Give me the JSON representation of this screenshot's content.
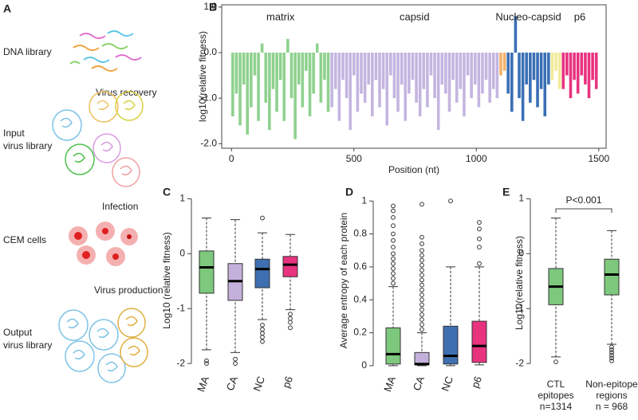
{
  "diagram": {
    "label": "A",
    "dna_library": "DNA library",
    "virus_recovery": "Virus recovery",
    "input_library": [
      "Input",
      "virus library"
    ],
    "infection": "Infection",
    "cem_cells": "CEM cells",
    "virus_production": "Virus production",
    "output_library": [
      "Output",
      "virus library"
    ]
  },
  "chart_data": [
    {
      "type": "bar",
      "label": "B",
      "xlabel": "Position (nt)",
      "ylabel": "log10(relative fitness)",
      "xlim": [
        -40,
        1530
      ],
      "xticks": [
        0,
        500,
        1000,
        1500
      ],
      "ylim": [
        -2.1,
        1.05
      ],
      "yticks": [
        {
          "value": -2,
          "label": "-2.0"
        },
        {
          "value": -1,
          "label": "-1.0"
        },
        {
          "value": 0,
          "label": "0.0"
        },
        {
          "value": 1,
          "label": "1.0"
        }
      ],
      "series": [
        {
          "name": "matrix",
          "color": "#8fd18f",
          "x": [
            5,
            20,
            35,
            50,
            65,
            80,
            95,
            110,
            125,
            140,
            155,
            170,
            185,
            200,
            215,
            230,
            245,
            260,
            275,
            290,
            305,
            320,
            335,
            350,
            365,
            380,
            395
          ],
          "values": [
            -1.4,
            -0.9,
            -1.6,
            -0.7,
            -1.8,
            -1.2,
            -0.5,
            -1.5,
            0.2,
            -1.1,
            -1.7,
            -0.8,
            -1.3,
            -0.6,
            -1.5,
            0.3,
            -1.0,
            -1.9,
            -0.7,
            -1.2,
            -0.4,
            -1.4,
            -0.9,
            0.2,
            -1.1,
            -0.6,
            -1.3
          ]
        },
        {
          "name": "capsid",
          "color": "#c4b5e0",
          "x": [
            410,
            425,
            440,
            455,
            470,
            485,
            500,
            515,
            530,
            545,
            560,
            575,
            590,
            605,
            620,
            635,
            650,
            665,
            680,
            695,
            710,
            725,
            740,
            755,
            770,
            785,
            800,
            815,
            830,
            845,
            860,
            875,
            890,
            905,
            920,
            935,
            950,
            965,
            980,
            995,
            1010,
            1025,
            1040,
            1055,
            1070,
            1085
          ],
          "values": [
            -1.2,
            -0.8,
            -1.5,
            -0.6,
            -1.0,
            -1.7,
            -0.5,
            -1.3,
            -0.9,
            -1.1,
            -0.7,
            -1.4,
            -0.6,
            -1.2,
            -0.8,
            -1.6,
            -0.5,
            -1.0,
            -1.3,
            -0.7,
            -1.5,
            -0.9,
            -0.6,
            -1.1,
            -1.4,
            -0.8,
            -1.2,
            -0.5,
            -1.0,
            -1.7,
            -0.7,
            -0.9,
            -1.3,
            -0.6,
            -1.1,
            -0.8,
            -1.4,
            -0.5,
            -1.0,
            -0.7,
            -1.2,
            -0.9,
            -0.6,
            -1.1,
            -0.8,
            -1.0
          ]
        },
        {
          "color": "#f5b26b",
          "x": [
            1100,
            1115
          ],
          "values": [
            -0.5,
            -0.4
          ]
        },
        {
          "name": "Nucleo-capsid",
          "color": "#3a6fb5",
          "x": [
            1130,
            1145,
            1160,
            1175,
            1190,
            1205,
            1220,
            1235,
            1250,
            1265,
            1280,
            1295
          ],
          "values": [
            -0.9,
            -1.3,
            0.8,
            -1.0,
            -1.5,
            -0.7,
            -1.1,
            -0.6,
            -1.2,
            -0.8,
            -1.4,
            -0.7
          ]
        },
        {
          "color": "#f2eb9a",
          "x": [
            1310,
            1325,
            1340
          ],
          "values": [
            -0.6,
            -0.4,
            -0.8
          ]
        },
        {
          "name": "p6",
          "color": "#e8337f",
          "x": [
            1355,
            1370,
            1385,
            1400,
            1415,
            1430,
            1445,
            1460,
            1475,
            1490
          ],
          "values": [
            -0.8,
            -0.5,
            -1.0,
            -0.6,
            -0.9,
            -0.5,
            -0.7,
            -1.0,
            -0.6,
            -0.8
          ]
        }
      ]
    },
    {
      "type": "box",
      "label": "C",
      "ylabel": "Log10 (relative fitness)",
      "categories": [
        "MA",
        "CA",
        "NC",
        "p6"
      ],
      "colors": [
        "#7dc87d",
        "#c3b1db",
        "#3e6fb0",
        "#e8337f"
      ],
      "ylim": [
        -2.1,
        1.05
      ],
      "yticks": [
        -2,
        -1,
        0,
        1
      ],
      "boxes": [
        {
          "low": -1.75,
          "q1": -0.72,
          "median": -0.25,
          "q3": 0.05,
          "high": 0.65,
          "outliers": [
            -1.95,
            -2.0
          ]
        },
        {
          "low": -1.8,
          "q1": -0.85,
          "median": -0.5,
          "q3": -0.18,
          "high": 0.62,
          "outliers": [
            -1.92,
            -2.0
          ]
        },
        {
          "low": -1.2,
          "q1": -0.62,
          "median": -0.28,
          "q3": -0.1,
          "high": 0.38,
          "outliers": [
            0.65,
            -1.3,
            -1.38,
            -1.45,
            -1.52,
            -1.6
          ]
        },
        {
          "low": -1.02,
          "q1": -0.42,
          "median": -0.2,
          "q3": -0.05,
          "high": 0.35,
          "outliers": [
            -1.1,
            -1.18,
            -1.25,
            -1.35
          ]
        }
      ]
    },
    {
      "type": "box",
      "label": "D",
      "ylabel": "Average entropy of each protein",
      "categories": [
        "MA",
        "CA",
        "NC",
        "p6"
      ],
      "colors": [
        "#7dc87d",
        "#c3b1db",
        "#3e6fb0",
        "#e8337f"
      ],
      "ylim": [
        -0.02,
        1.03
      ],
      "yticks": [
        0,
        0.2,
        0.4,
        0.6,
        0.8,
        1
      ],
      "boxes": [
        {
          "low": 0,
          "q1": 0.01,
          "median": 0.07,
          "q3": 0.23,
          "high": 0.48,
          "outliers": [
            0.5,
            0.53,
            0.56,
            0.59,
            0.62,
            0.65,
            0.68,
            0.72,
            0.76,
            0.8,
            0.85,
            0.9,
            0.94,
            0.97
          ]
        },
        {
          "low": 0,
          "q1": 0.005,
          "median": 0.01,
          "q3": 0.08,
          "high": 0.2,
          "outliers": [
            0.22,
            0.25,
            0.28,
            0.31,
            0.34,
            0.37,
            0.4,
            0.43,
            0.46,
            0.49,
            0.52,
            0.55,
            0.58,
            0.61,
            0.64,
            0.67,
            0.7,
            0.74,
            0.78,
            0.98
          ]
        },
        {
          "low": 0,
          "q1": 0.01,
          "median": 0.06,
          "q3": 0.24,
          "high": 0.6,
          "outliers": [
            1.0
          ]
        },
        {
          "low": 0.005,
          "q1": 0.02,
          "median": 0.12,
          "q3": 0.27,
          "high": 0.6,
          "outliers": [
            0.62,
            0.72,
            0.77,
            0.83,
            0.87
          ]
        }
      ]
    },
    {
      "type": "box",
      "label": "E",
      "ylabel": "Log10(relative fitness)",
      "categories": [
        "CTL epitopes",
        "Non-epitope regions"
      ],
      "n_labels": [
        "n=1314",
        "n = 968"
      ],
      "colors": [
        "#7dc87d",
        "#7dc87d"
      ],
      "annotation": "P<0.001",
      "ylim": [
        -2.1,
        1.05
      ],
      "yticks": [
        -2,
        -1,
        0,
        1
      ],
      "boxes": [
        {
          "low": -1.88,
          "q1": -0.93,
          "median": -0.6,
          "q3": -0.27,
          "high": 0.65,
          "outliers": [
            -1.97
          ]
        },
        {
          "low": -1.65,
          "q1": -0.75,
          "median": -0.38,
          "q3": -0.1,
          "high": 0.42,
          "outliers": [
            -1.7,
            -1.75,
            -1.8,
            -1.85,
            -1.9,
            -1.95
          ]
        }
      ]
    }
  ]
}
